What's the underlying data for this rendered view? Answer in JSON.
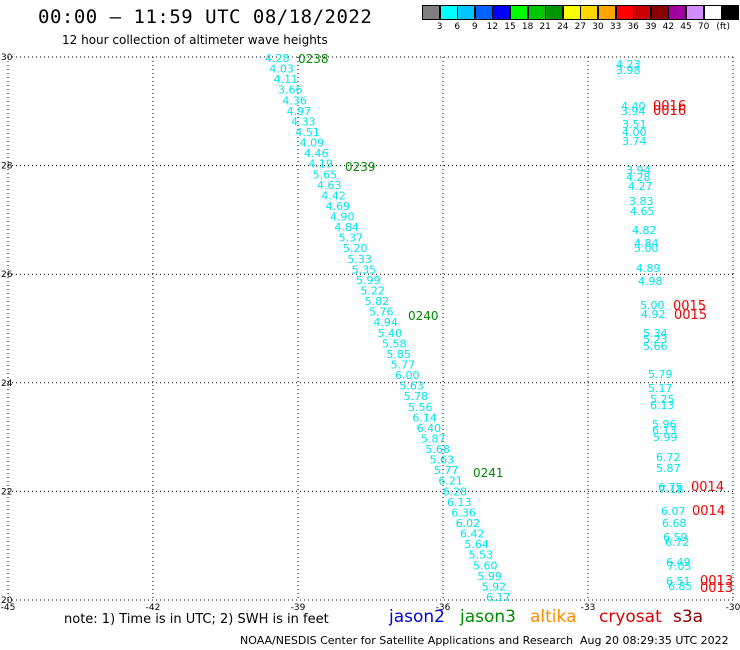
{
  "title": "00:00 – 11:59 UTC 08/18/2022",
  "subtitle": "12 hour collection of altimeter wave heights",
  "colorbar": {
    "unit": "(ft)",
    "bins": [
      {
        "label": "",
        "color": "#7f7f7f"
      },
      {
        "label": "3",
        "color": "#00ffff"
      },
      {
        "label": "6",
        "color": "#00c8ff"
      },
      {
        "label": "9",
        "color": "#0064ff"
      },
      {
        "label": "12",
        "color": "#0000ff"
      },
      {
        "label": "15",
        "color": "#00ff00"
      },
      {
        "label": "18",
        "color": "#00c800"
      },
      {
        "label": "21",
        "color": "#009600"
      },
      {
        "label": "24",
        "color": "#ffff00"
      },
      {
        "label": "27",
        "color": "#ffd700"
      },
      {
        "label": "30",
        "color": "#ffa500"
      },
      {
        "label": "33",
        "color": "#ff0000"
      },
      {
        "label": "36",
        "color": "#c80000"
      },
      {
        "label": "39",
        "color": "#8b0000"
      },
      {
        "label": "42",
        "color": "#a000a0"
      },
      {
        "label": "45",
        "color": "#d28cff"
      },
      {
        "label": "70",
        "color": "#ffffff"
      },
      {
        "label": "",
        "color": "#000000"
      }
    ]
  },
  "axes": {
    "lon_ticks": [
      "-45",
      "-42",
      "-39",
      "-36",
      "-33",
      "-30"
    ],
    "lat_ticks": [
      "30",
      "28",
      "26",
      "24",
      "22",
      "20"
    ]
  },
  "tracks": {
    "jason3": {
      "color": "#00e5ee",
      "values": [
        "4.28",
        "4.03",
        "4.11",
        "3.66",
        "4.36",
        "4.97",
        "4.33",
        "4.51",
        "4.09",
        "4.46",
        "4.19",
        "5.65",
        "4.63",
        "4.42",
        "4.69",
        "4.90",
        "4.84",
        "5.37",
        "5.20",
        "5.33",
        "5.35",
        "5.99",
        "5.22",
        "5.82",
        "5.76",
        "4.94",
        "5.40",
        "5.58",
        "5.85",
        "5.77",
        "6.00",
        "5.63",
        "5.78",
        "5.56",
        "6.14",
        "6.40",
        "5.87",
        "5.68",
        "5.63",
        "5.77",
        "6.21",
        "6.28",
        "6.13",
        "6.36",
        "6.02",
        "6.42",
        "5.64",
        "5.53",
        "5.60",
        "5.99",
        "5.92",
        "6.17"
      ]
    },
    "jason3_times": {
      "color": "#008c00",
      "labels": [
        "0238",
        "0239",
        "0240",
        "0241"
      ]
    },
    "cryosat": {
      "color": "#00e5ee",
      "values": [
        "4.23",
        "3.98",
        "4.40",
        "3.94",
        "3.51",
        "4.00",
        "3.74",
        "3.94",
        "4.28",
        "4.27",
        "3.83",
        "4.65",
        "4.82",
        "4.84",
        "5.00",
        "4.89",
        "4.98",
        "5.00",
        "4.92",
        "5.34",
        "5.23",
        "5.66",
        "5.79",
        "5.17",
        "5.25",
        "6.13",
        "5.96",
        "6.13",
        "5.99",
        "6.72",
        "5.87",
        "6.75",
        "7.18",
        "6.07",
        "6.68",
        "6.59",
        "6.72",
        "6.49",
        "7.05",
        "6.51",
        "6.85"
      ]
    },
    "cryosat_times": {
      "color": "#ee0000",
      "labels": [
        "0016",
        "0016",
        "0015",
        "0015",
        "0014",
        "0014",
        "0013",
        "0013"
      ]
    }
  },
  "footer": {
    "note": "note:  1) Time is in UTC;  2) SWH is in feet",
    "legend": [
      {
        "name": "jason2",
        "color": "#0000dd"
      },
      {
        "name": "jason3",
        "color": "#008c00"
      },
      {
        "name": "altika",
        "color": "#ff8c00"
      },
      {
        "name": "cryosat",
        "color": "#dd0000"
      },
      {
        "name": "s3a",
        "color": "#8b0000"
      }
    ],
    "credit": "NOAA/NESDIS Center for Satellite Applications and Research",
    "timestamp": "Aug 20 08:29:35 UTC 2022"
  }
}
